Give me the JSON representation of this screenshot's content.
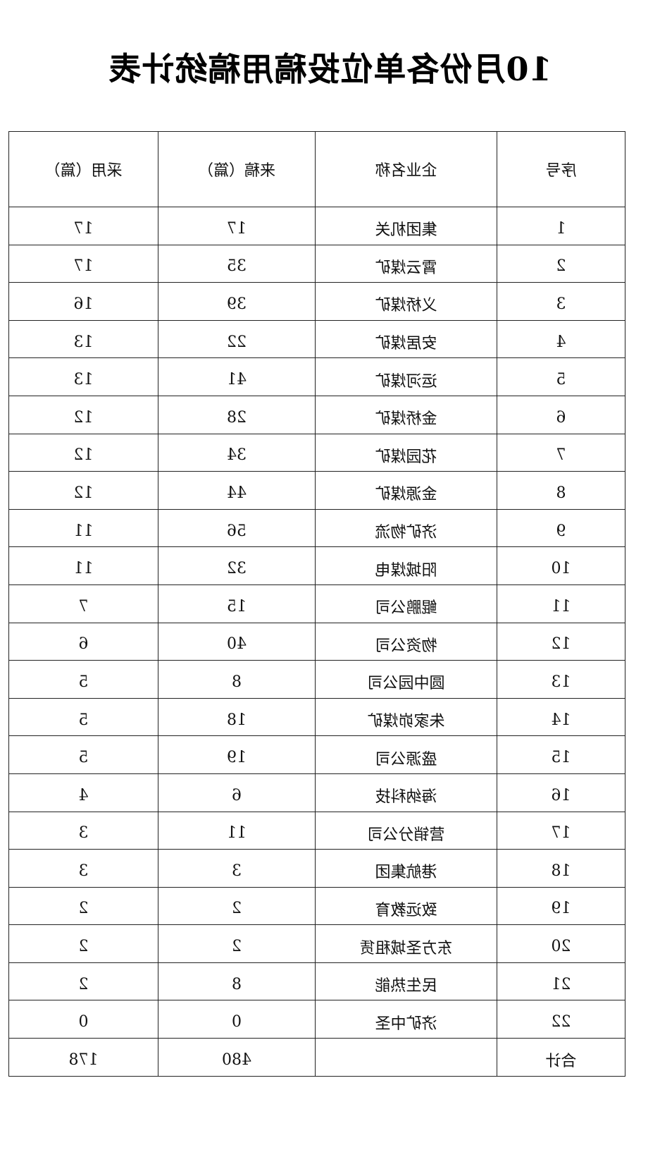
{
  "title": "10月份各单位投稿用稿统计表",
  "columns": [
    "序号",
    "企业名称",
    "来稿（篇）",
    "采用（篇）"
  ],
  "rows": [
    [
      "1",
      "集团机关",
      "17",
      "17"
    ],
    [
      "2",
      "霄云煤矿",
      "35",
      "17"
    ],
    [
      "3",
      "义桥煤矿",
      "39",
      "16"
    ],
    [
      "4",
      "安居煤矿",
      "22",
      "13"
    ],
    [
      "5",
      "运河煤矿",
      "41",
      "13"
    ],
    [
      "6",
      "金桥煤矿",
      "28",
      "12"
    ],
    [
      "7",
      "花园煤矿",
      "34",
      "12"
    ],
    [
      "8",
      "金源煤矿",
      "44",
      "12"
    ],
    [
      "9",
      "济矿物流",
      "56",
      "11"
    ],
    [
      "10",
      "阳城煤电",
      "32",
      "11"
    ],
    [
      "11",
      "鲲鹏公司",
      "15",
      "7"
    ],
    [
      "12",
      "物资公司",
      "40",
      "6"
    ],
    [
      "13",
      "圆中园公司",
      "8",
      "5"
    ],
    [
      "14",
      "朱家峁煤矿",
      "18",
      "5"
    ],
    [
      "15",
      "盛源公司",
      "19",
      "5"
    ],
    [
      "16",
      "海纳科技",
      "6",
      "4"
    ],
    [
      "17",
      "营销分公司",
      "11",
      "3"
    ],
    [
      "18",
      "港航集团",
      "3",
      "3"
    ],
    [
      "19",
      "致远教育",
      "2",
      "2"
    ],
    [
      "20",
      "东方圣城租赁",
      "2",
      "2"
    ],
    [
      "21",
      "民生热能",
      "8",
      "2"
    ],
    [
      "22",
      "济矿中圣",
      "0",
      "0"
    ]
  ],
  "total": {
    "label": "合计",
    "name": "",
    "submitted": "480",
    "adopted": "178"
  }
}
